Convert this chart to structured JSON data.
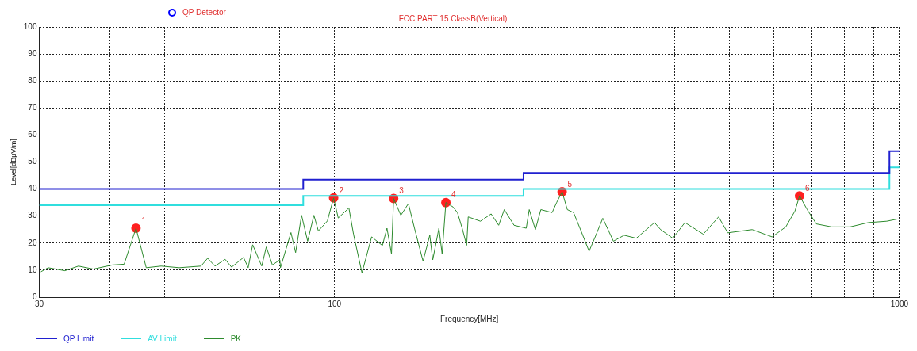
{
  "chart_data": {
    "type": "line",
    "title": "FCC PART 15 ClassB(Vertical)",
    "xlabel": "Frequency[MHz]",
    "ylabel": "Level[dBμV/m]",
    "log": "x",
    "grid": true,
    "legend": "bottom",
    "xlim": [
      30,
      1000
    ],
    "xticks": [
      30,
      {
        "value": 40,
        "label": null
      },
      {
        "value": 50,
        "label": null
      },
      {
        "value": 60,
        "label": null
      },
      {
        "value": 70,
        "label": null
      },
      {
        "value": 80,
        "label": null
      },
      {
        "value": 90,
        "label": null
      },
      100,
      {
        "value": 200,
        "label": null
      },
      {
        "value": 300,
        "label": null
      },
      {
        "value": 400,
        "label": null
      },
      {
        "value": 500,
        "label": null
      },
      {
        "value": 600,
        "label": null
      },
      {
        "value": 700,
        "label": null
      },
      {
        "value": 800,
        "label": null
      },
      {
        "value": 900,
        "label": null
      },
      1000
    ],
    "ylim": [
      0,
      100
    ],
    "yticks": [
      0,
      10,
      20,
      30,
      40,
      50,
      60,
      70,
      80,
      90,
      100
    ],
    "series": [
      {
        "name": "QP Limit",
        "type": "step",
        "color": "#2020d0",
        "x": [
          30,
          88,
          216,
          960,
          1000
        ],
        "values": [
          40,
          43.5,
          46,
          54,
          54
        ]
      },
      {
        "name": "AV Limit",
        "type": "step",
        "color": "#30dede",
        "x": [
          30,
          88,
          216,
          960,
          1000
        ],
        "values": [
          34,
          37.5,
          40,
          48,
          48
        ]
      },
      {
        "name": "PK",
        "type": "line",
        "color": "#2e8b2e",
        "x": [
          30.2,
          31.1,
          33.3,
          35.2,
          37.4,
          40.4,
          42.4,
          44.5,
          46.4,
          49.3,
          53.1,
          58.0,
          59.6,
          61.4,
          64.0,
          65.7,
          69.0,
          70.3,
          71.6,
          74.3,
          75.7,
          77.6,
          80.0,
          80.2,
          83.7,
          85.3,
          87.4,
          89.6,
          91.9,
          93.6,
          97.1,
          99.6,
          101.5,
          106.0,
          108.0,
          111.8,
          116.3,
          121.5,
          123.8,
          126.1,
          127.2,
          131.0,
          135.1,
          138.5,
          143.4,
          147.4,
          149.2,
          153.0,
          155.0,
          157.4,
          162.0,
          165.0,
          168.2,
          171.3,
          172.4,
          181.2,
          189.3,
          195.2,
          199.7,
          207.8,
          218.4,
          221.1,
          226.7,
          231.8,
          242.7,
          247.2,
          252.8,
          258.2,
          264.9,
          273.2,
          282.2,
          289.3,
          298.4,
          311.6,
          325.5,
          342.1,
          368.4,
          377.7,
          396.9,
          417.1,
          449.5,
          478.4,
          496.6,
          548.6,
          595.0,
          629.2,
          653.2,
          665.5,
          686.5,
          712.6,
          758.4,
          817.6,
          881.1,
          949.6,
          992
        ],
        "values": [
          9.4,
          10.9,
          9.8,
          11.5,
          10.4,
          11.9,
          12.2,
          25.5,
          10.9,
          11.5,
          10.9,
          11.5,
          14.4,
          11.5,
          14.0,
          11.1,
          14.7,
          10.9,
          19.4,
          11.5,
          18.6,
          11.9,
          13.8,
          10.9,
          23.9,
          16.5,
          30.3,
          20.7,
          30.3,
          24.5,
          28.2,
          36.7,
          29.3,
          33.0,
          23.4,
          9.0,
          22.3,
          19.1,
          25.5,
          16.0,
          36.5,
          30.3,
          34.6,
          25.5,
          13.3,
          22.9,
          13.8,
          25.5,
          16.0,
          35.0,
          33.4,
          31.3,
          25.5,
          19.2,
          29.7,
          28.1,
          30.8,
          26.6,
          32.4,
          26.6,
          25.5,
          32.4,
          25.0,
          32.4,
          31.3,
          35.0,
          39.0,
          32.4,
          31.3,
          24.4,
          17.0,
          22.3,
          29.2,
          20.7,
          22.9,
          21.8,
          27.6,
          25.0,
          21.8,
          27.6,
          23.3,
          29.7,
          23.8,
          25.0,
          22.3,
          26.0,
          31.9,
          37.5,
          32.4,
          27.1,
          26.0,
          26.0,
          27.6,
          28.1,
          28.9
        ]
      },
      {
        "type": "scatter",
        "color": "#ff2020",
        "marker": "circle",
        "x": [
          44.5,
          99.6,
          127.2,
          157.4,
          252.8,
          665.5
        ],
        "values": [
          25.5,
          36.7,
          36.5,
          35.0,
          39.0,
          37.5
        ]
      },
      {
        "name": "QP Detector",
        "type": "scatter",
        "color": "#0000ff",
        "marker": "circle"
      }
    ],
    "annotations": [
      {
        "text": "1",
        "x": 44.5,
        "y": 25.5
      },
      {
        "text": "2",
        "x": 99.6,
        "y": 36.7
      },
      {
        "text": "3",
        "x": 127.2,
        "y": 36.5
      },
      {
        "text": "4",
        "x": 157.4,
        "y": 35.0
      },
      {
        "text": "5",
        "x": 252.8,
        "y": 39.0
      },
      {
        "text": "6",
        "x": 665.5,
        "y": 37.5
      }
    ]
  }
}
